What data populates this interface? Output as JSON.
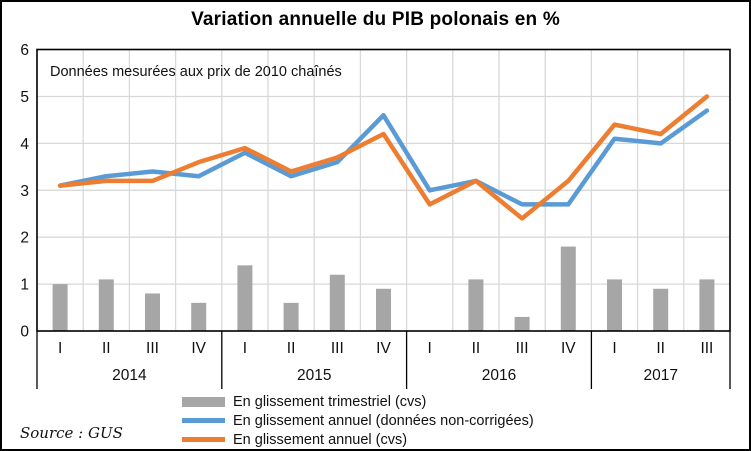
{
  "source": "Source : GUS",
  "colors": {
    "bar": "#A6A6A6",
    "line_nsa": "#5B9BD5",
    "line_cvs": "#ED7D31",
    "gridline": "#D9D9D9",
    "axis": "#000000"
  },
  "legend": [
    {
      "swatch": "bar",
      "color": "#A6A6A6",
      "label": "En glissement trimestriel (cvs)"
    },
    {
      "swatch": "line",
      "color": "#5B9BD5",
      "label": "En glissement annuel (données non-corrigées)"
    },
    {
      "swatch": "line",
      "color": "#ED7D31",
      "label": "En glissement annuel (cvs)"
    }
  ],
  "chart_data": {
    "type": "combo bar+line",
    "title": "Variation annuelle du PIB polonais en %",
    "annotation": "Données mesurées aux prix de 2010 chaînés",
    "x_groups": [
      {
        "year": "2014",
        "quarters": [
          "I",
          "II",
          "III",
          "IV"
        ]
      },
      {
        "year": "2015",
        "quarters": [
          "I",
          "II",
          "III",
          "IV"
        ]
      },
      {
        "year": "2016",
        "quarters": [
          "I",
          "II",
          "III",
          "IV"
        ]
      },
      {
        "year": "2017",
        "quarters": [
          "I",
          "II",
          "III"
        ]
      }
    ],
    "series": [
      {
        "name": "En glissement trimestriel (cvs)",
        "type": "bar",
        "color": "#A6A6A6",
        "values": [
          1.0,
          1.1,
          0.8,
          0.6,
          1.4,
          0.6,
          1.2,
          0.9,
          0.0,
          1.1,
          0.3,
          1.8,
          1.1,
          0.9,
          1.1
        ]
      },
      {
        "name": "En glissement annuel (données non-corrigées)",
        "type": "line",
        "color": "#5B9BD5",
        "values": [
          3.1,
          3.3,
          3.4,
          3.3,
          3.8,
          3.3,
          3.6,
          4.6,
          3.0,
          3.2,
          2.7,
          2.7,
          4.1,
          4.0,
          4.7
        ]
      },
      {
        "name": "En glissement annuel (cvs)",
        "type": "line",
        "color": "#ED7D31",
        "values": [
          3.1,
          3.2,
          3.2,
          3.6,
          3.9,
          3.4,
          3.7,
          4.2,
          2.7,
          3.2,
          2.4,
          3.2,
          4.4,
          4.2,
          5.0
        ]
      }
    ],
    "ylim": [
      0,
      6
    ],
    "yticks": [
      0,
      1,
      2,
      3,
      4,
      5,
      6
    ],
    "grid": true,
    "legend_position": "bottom"
  }
}
